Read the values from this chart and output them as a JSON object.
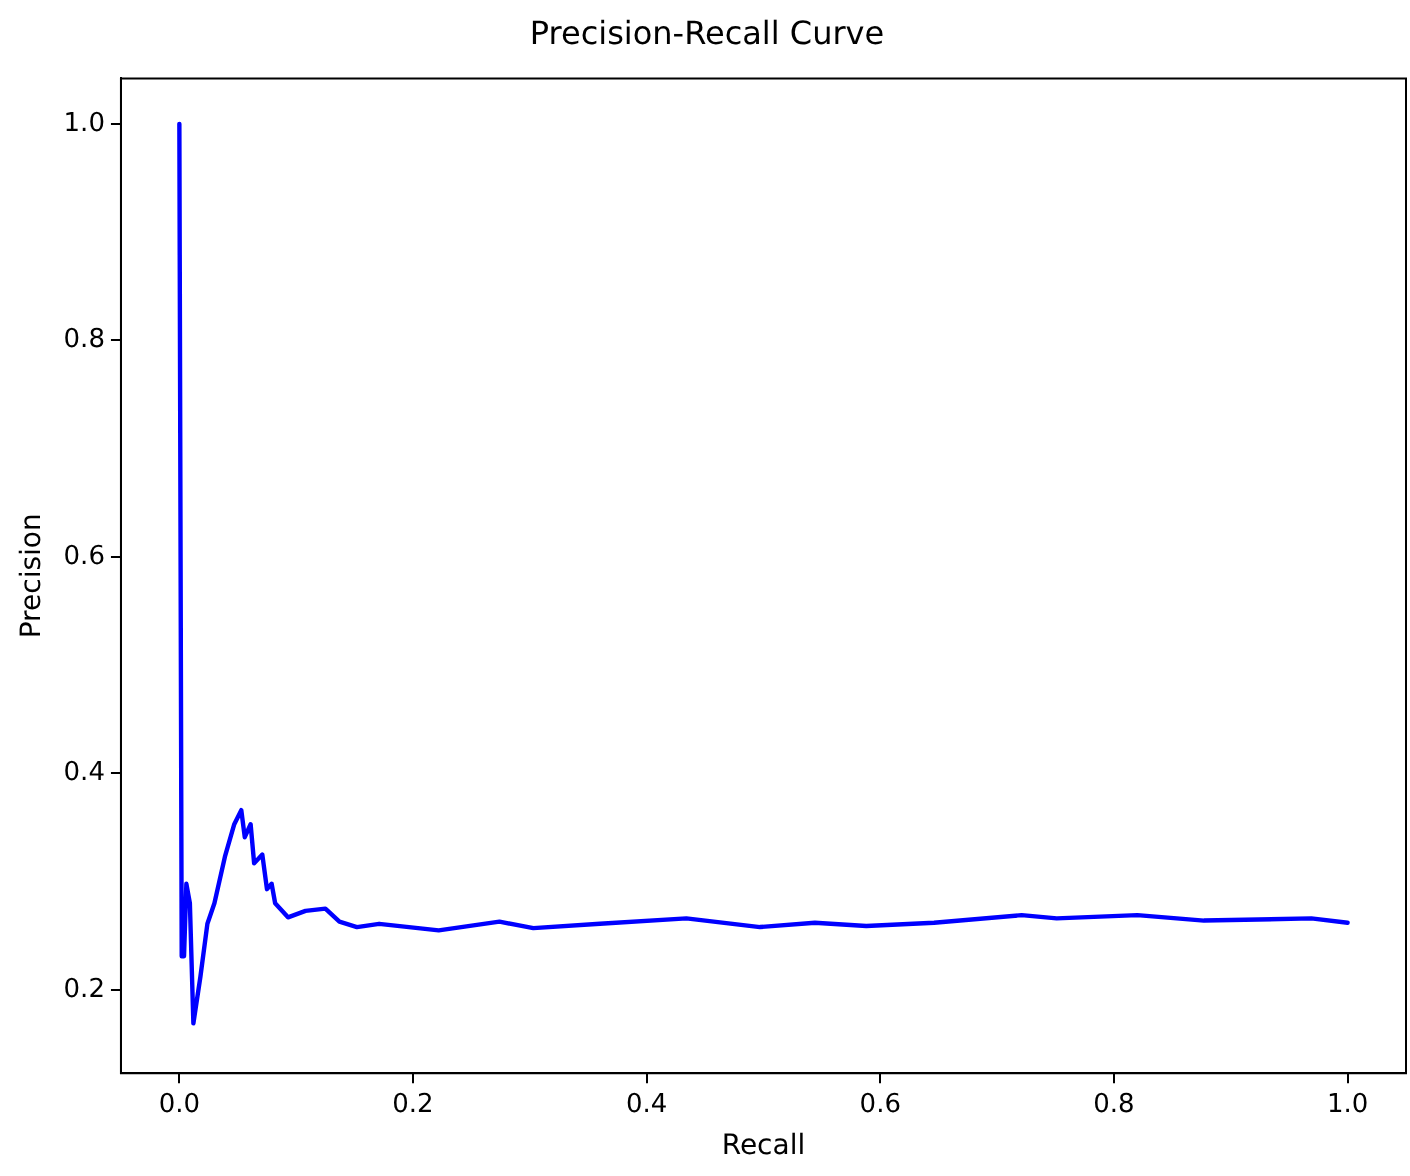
{
  "chart_data": {
    "type": "line",
    "title": "Precision-Recall Curve",
    "xlabel": "Recall",
    "ylabel": "Precision",
    "xlim": [
      -0.05,
      1.05
    ],
    "xticks": [
      {
        "value": 0,
        "label": "0.0"
      },
      0.2,
      0.4,
      0.6,
      0.8,
      {
        "value": 1,
        "label": "1.0"
      }
    ],
    "ylim": [
      0.123,
      1.042
    ],
    "yticks": [
      0.2,
      0.4,
      0.6,
      0.8,
      {
        "value": 1,
        "label": "1.0"
      }
    ],
    "grid": false,
    "legend": false,
    "marker": "none",
    "line_style": "solid",
    "series": [
      {
        "color": "#0000ff",
        "x": [
          0,
          0.002,
          0.004,
          0.006,
          0.009,
          0.012,
          0.018,
          0.024,
          0.03,
          0.039,
          0.047,
          0.053,
          0.056,
          0.061,
          0.064,
          0.071,
          0.075,
          0.079,
          0.082,
          0.093,
          0.108,
          0.125,
          0.137,
          0.152,
          0.171,
          0.222,
          0.274,
          0.303,
          0.36,
          0.434,
          0.497,
          0.544,
          0.588,
          0.646,
          0.721,
          0.751,
          0.82,
          0.877,
          0.969,
          1
        ],
        "values": [
          1,
          0.231,
          0.231,
          0.298,
          0.28,
          0.169,
          0.212,
          0.261,
          0.28,
          0.323,
          0.353,
          0.366,
          0.341,
          0.353,
          0.317,
          0.325,
          0.293,
          0.298,
          0.28,
          0.267,
          0.273,
          0.275,
          0.263,
          0.258,
          0.261,
          0.255,
          0.263,
          0.257,
          0.261,
          0.266,
          0.258,
          0.262,
          0.259,
          0.262,
          0.269,
          0.266,
          0.269,
          0.264,
          0.266,
          0.262
        ]
      }
    ]
  }
}
